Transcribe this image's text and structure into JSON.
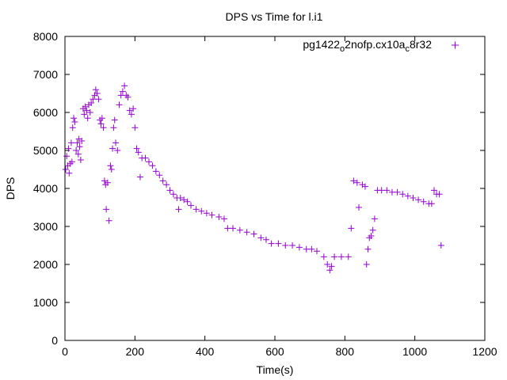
{
  "chart_data": {
    "type": "scatter",
    "title": "DPS vs Time for l.i1",
    "xlabel": "Time(s)",
    "ylabel": "DPS",
    "xlim": [
      0,
      1200
    ],
    "ylim": [
      0,
      8000
    ],
    "xticks": [
      0,
      200,
      400,
      600,
      800,
      1000,
      1200
    ],
    "yticks": [
      0,
      1000,
      2000,
      3000,
      4000,
      5000,
      6000,
      7000,
      8000
    ],
    "grid": false,
    "legend_position": "top-right",
    "series": [
      {
        "name": "pg1422",
        "name_sub1": "o",
        "name_mid": "2nofp.cx10a",
        "name_sub2": "c",
        "name_end": "8r32",
        "color": "#9400d3",
        "points": [
          [
            2,
            4500
          ],
          [
            5,
            4850
          ],
          [
            8,
            4600
          ],
          [
            10,
            5050
          ],
          [
            12,
            4400
          ],
          [
            15,
            4650
          ],
          [
            18,
            5200
          ],
          [
            20,
            4700
          ],
          [
            22,
            5600
          ],
          [
            25,
            5850
          ],
          [
            28,
            5750
          ],
          [
            32,
            5000
          ],
          [
            35,
            5200
          ],
          [
            38,
            4900
          ],
          [
            40,
            5300
          ],
          [
            42,
            5100
          ],
          [
            45,
            4750
          ],
          [
            48,
            5250
          ],
          [
            52,
            6100
          ],
          [
            55,
            5950
          ],
          [
            58,
            6150
          ],
          [
            62,
            6050
          ],
          [
            65,
            5850
          ],
          [
            68,
            6200
          ],
          [
            72,
            6000
          ],
          [
            75,
            6250
          ],
          [
            80,
            6350
          ],
          [
            85,
            6450
          ],
          [
            88,
            6600
          ],
          [
            92,
            6500
          ],
          [
            96,
            6350
          ],
          [
            100,
            5800
          ],
          [
            103,
            5700
          ],
          [
            106,
            5850
          ],
          [
            110,
            5600
          ],
          [
            113,
            4200
          ],
          [
            116,
            4100
          ],
          [
            118,
            3450
          ],
          [
            122,
            4150
          ],
          [
            126,
            3150
          ],
          [
            130,
            4600
          ],
          [
            133,
            4500
          ],
          [
            136,
            5050
          ],
          [
            139,
            5600
          ],
          [
            142,
            5800
          ],
          [
            145,
            5200
          ],
          [
            150,
            5000
          ],
          [
            155,
            6200
          ],
          [
            160,
            6450
          ],
          [
            165,
            6550
          ],
          [
            170,
            6700
          ],
          [
            175,
            6450
          ],
          [
            180,
            6400
          ],
          [
            185,
            6050
          ],
          [
            190,
            5950
          ],
          [
            195,
            6100
          ],
          [
            200,
            5600
          ],
          [
            205,
            5050
          ],
          [
            210,
            4950
          ],
          [
            215,
            4300
          ],
          [
            220,
            4800
          ],
          [
            230,
            4800
          ],
          [
            240,
            4700
          ],
          [
            250,
            4600
          ],
          [
            260,
            4450
          ],
          [
            270,
            4350
          ],
          [
            280,
            4200
          ],
          [
            290,
            4100
          ],
          [
            300,
            3950
          ],
          [
            310,
            3850
          ],
          [
            320,
            3750
          ],
          [
            325,
            3450
          ],
          [
            330,
            3750
          ],
          [
            340,
            3700
          ],
          [
            350,
            3650
          ],
          [
            360,
            3550
          ],
          [
            375,
            3450
          ],
          [
            390,
            3400
          ],
          [
            405,
            3350
          ],
          [
            420,
            3300
          ],
          [
            440,
            3250
          ],
          [
            455,
            3200
          ],
          [
            465,
            2950
          ],
          [
            480,
            2950
          ],
          [
            500,
            2900
          ],
          [
            520,
            2850
          ],
          [
            540,
            2800
          ],
          [
            560,
            2700
          ],
          [
            575,
            2650
          ],
          [
            590,
            2550
          ],
          [
            610,
            2550
          ],
          [
            630,
            2500
          ],
          [
            650,
            2500
          ],
          [
            670,
            2450
          ],
          [
            690,
            2400
          ],
          [
            705,
            2400
          ],
          [
            720,
            2350
          ],
          [
            740,
            2200
          ],
          [
            750,
            2000
          ],
          [
            757,
            1850
          ],
          [
            762,
            1950
          ],
          [
            770,
            2200
          ],
          [
            790,
            2200
          ],
          [
            810,
            2200
          ],
          [
            818,
            2950
          ],
          [
            825,
            4200
          ],
          [
            835,
            4150
          ],
          [
            840,
            3500
          ],
          [
            850,
            4100
          ],
          [
            858,
            4050
          ],
          [
            862,
            2000
          ],
          [
            866,
            2400
          ],
          [
            870,
            2700
          ],
          [
            875,
            2750
          ],
          [
            880,
            2900
          ],
          [
            885,
            3200
          ],
          [
            893,
            3950
          ],
          [
            905,
            3950
          ],
          [
            920,
            3950
          ],
          [
            935,
            3900
          ],
          [
            950,
            3900
          ],
          [
            965,
            3850
          ],
          [
            980,
            3800
          ],
          [
            995,
            3750
          ],
          [
            1010,
            3700
          ],
          [
            1025,
            3650
          ],
          [
            1040,
            3600
          ],
          [
            1048,
            3600
          ],
          [
            1055,
            3950
          ],
          [
            1062,
            3850
          ],
          [
            1070,
            3850
          ],
          [
            1075,
            2500
          ]
        ]
      }
    ]
  }
}
